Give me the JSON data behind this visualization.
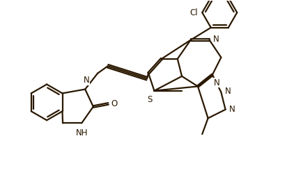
{
  "bg_color": "#ffffff",
  "line_color": "#2a1800",
  "line_width": 1.6,
  "figsize": [
    4.22,
    2.78
  ],
  "dpi": 100,
  "xlim": [
    0,
    10
  ],
  "ylim": [
    0,
    6.6
  ],
  "label_fontsize": 8.5
}
